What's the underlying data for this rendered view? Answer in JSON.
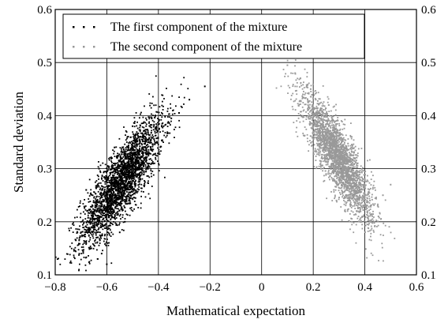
{
  "chart_data": {
    "type": "scatter",
    "xlabel": "Mathematical expectation",
    "ylabel": "Standard deviation",
    "xlim": [
      -0.8,
      0.6
    ],
    "ylim": [
      0.1,
      0.6
    ],
    "grid": true,
    "legend_position": "top-left",
    "x_ticks": [
      "−0.8",
      "−0.6",
      "−0.4",
      "−0.2",
      "0",
      "0.2",
      "0.4",
      "0.6"
    ],
    "y_ticks": [
      "0.1",
      "0.2",
      "0.3",
      "0.4",
      "0.5",
      "0.6"
    ],
    "series": [
      {
        "name": "The first component of the mixture",
        "color": "#000000",
        "points": [
          [
            -0.72,
            0.165
          ],
          [
            -0.7,
            0.18
          ],
          [
            -0.68,
            0.16
          ],
          [
            -0.67,
            0.2
          ],
          [
            -0.66,
            0.15
          ],
          [
            -0.66,
            0.22
          ],
          [
            -0.65,
            0.19
          ],
          [
            -0.64,
            0.24
          ],
          [
            -0.64,
            0.17
          ],
          [
            -0.63,
            0.21
          ],
          [
            -0.62,
            0.26
          ],
          [
            -0.62,
            0.14
          ],
          [
            -0.61,
            0.23
          ],
          [
            -0.6,
            0.19
          ],
          [
            -0.6,
            0.28
          ],
          [
            -0.59,
            0.25
          ],
          [
            -0.58,
            0.21
          ],
          [
            -0.58,
            0.3
          ],
          [
            -0.57,
            0.27
          ],
          [
            -0.56,
            0.23
          ],
          [
            -0.56,
            0.32
          ],
          [
            -0.55,
            0.29
          ],
          [
            -0.54,
            0.25
          ],
          [
            -0.54,
            0.34
          ],
          [
            -0.53,
            0.31
          ],
          [
            -0.52,
            0.27
          ],
          [
            -0.52,
            0.36
          ],
          [
            -0.51,
            0.33
          ],
          [
            -0.5,
            0.29
          ],
          [
            -0.5,
            0.38
          ],
          [
            -0.49,
            0.35
          ],
          [
            -0.48,
            0.31
          ],
          [
            -0.47,
            0.36
          ],
          [
            -0.46,
            0.33
          ],
          [
            -0.45,
            0.37
          ],
          [
            -0.43,
            0.34
          ],
          [
            -0.42,
            0.36
          ],
          [
            -0.38,
            0.38
          ],
          [
            -0.35,
            0.395
          ],
          [
            -0.32,
            0.405
          ],
          [
            -0.28,
            0.43
          ],
          [
            -0.22,
            0.455
          ],
          [
            -0.55,
            0.18
          ],
          [
            -0.6,
            0.12
          ],
          [
            -0.53,
            0.2
          ],
          [
            -0.68,
            0.26
          ],
          [
            -0.63,
            0.3
          ],
          [
            -0.57,
            0.34
          ],
          [
            -0.47,
            0.28
          ],
          [
            -0.44,
            0.3
          ]
        ]
      },
      {
        "name": "The second component of the mixture",
        "color": "#999999",
        "points": [
          [
            0.1,
            0.495
          ],
          [
            0.13,
            0.48
          ],
          [
            0.15,
            0.47
          ],
          [
            0.16,
            0.44
          ],
          [
            0.18,
            0.42
          ],
          [
            0.19,
            0.45
          ],
          [
            0.2,
            0.4
          ],
          [
            0.21,
            0.43
          ],
          [
            0.22,
            0.38
          ],
          [
            0.23,
            0.41
          ],
          [
            0.24,
            0.36
          ],
          [
            0.24,
            0.4
          ],
          [
            0.25,
            0.34
          ],
          [
            0.26,
            0.38
          ],
          [
            0.27,
            0.32
          ],
          [
            0.27,
            0.36
          ],
          [
            0.28,
            0.3
          ],
          [
            0.29,
            0.34
          ],
          [
            0.3,
            0.28
          ],
          [
            0.3,
            0.33
          ],
          [
            0.31,
            0.27
          ],
          [
            0.32,
            0.31
          ],
          [
            0.33,
            0.25
          ],
          [
            0.33,
            0.3
          ],
          [
            0.34,
            0.24
          ],
          [
            0.35,
            0.28
          ],
          [
            0.36,
            0.23
          ],
          [
            0.36,
            0.27
          ],
          [
            0.37,
            0.22
          ],
          [
            0.38,
            0.26
          ],
          [
            0.39,
            0.21
          ],
          [
            0.4,
            0.25
          ],
          [
            0.41,
            0.22
          ],
          [
            0.42,
            0.24
          ],
          [
            0.43,
            0.205
          ],
          [
            0.45,
            0.23
          ],
          [
            0.47,
            0.25
          ],
          [
            0.5,
            0.27
          ],
          [
            0.22,
            0.33
          ],
          [
            0.25,
            0.29
          ],
          [
            0.28,
            0.26
          ],
          [
            0.31,
            0.35
          ],
          [
            0.34,
            0.33
          ],
          [
            0.37,
            0.31
          ],
          [
            0.2,
            0.36
          ],
          [
            0.23,
            0.3
          ],
          [
            0.29,
            0.24
          ],
          [
            0.35,
            0.2
          ],
          [
            0.4,
            0.28
          ],
          [
            0.26,
            0.42
          ]
        ]
      }
    ]
  }
}
